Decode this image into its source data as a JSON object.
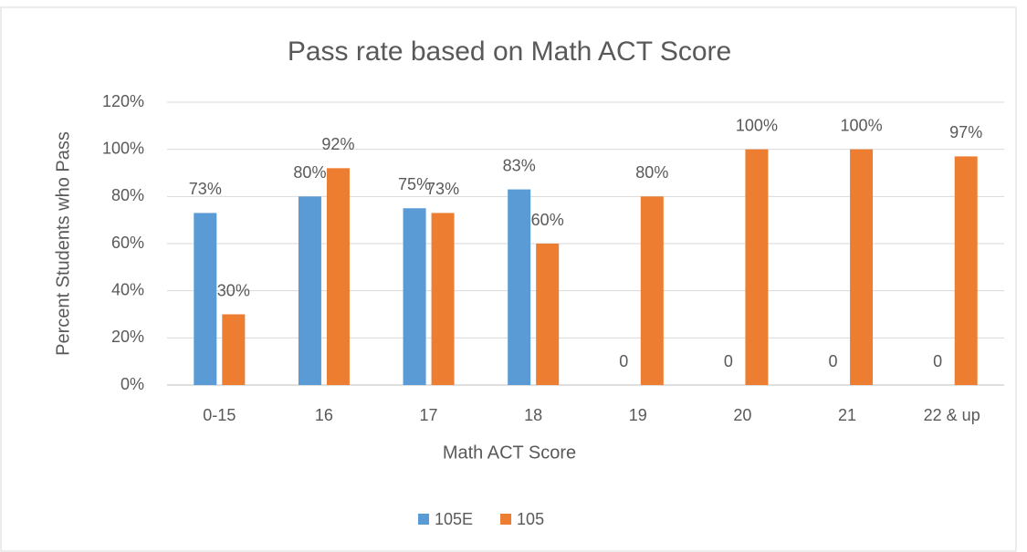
{
  "chart_data": {
    "type": "bar",
    "title": "Pass rate based on Math ACT Score",
    "x_label": "Math ACT Score",
    "y_label": "Percent Students who Pass",
    "categories": [
      "0-15",
      "16",
      "17",
      "18",
      "19",
      "20",
      "21",
      "22 & up"
    ],
    "series": [
      {
        "name": "105E",
        "color": "#5b9bd5",
        "values": [
          73,
          80,
          75,
          83,
          0,
          0,
          0,
          0
        ],
        "value_labels": [
          "73%",
          "80%",
          "75%",
          "83%",
          "0",
          "0",
          "0",
          "0"
        ]
      },
      {
        "name": "105",
        "color": "#ed7d31",
        "values": [
          30,
          92,
          73,
          60,
          80,
          100,
          100,
          97
        ],
        "value_labels": [
          "30%",
          "92%",
          "73%",
          "60%",
          "80%",
          "100%",
          "100%",
          "97%"
        ]
      }
    ],
    "ylim": [
      0,
      120
    ],
    "yticks": [
      {
        "value": 0,
        "label": "0%"
      },
      {
        "value": 20,
        "label": "20%"
      },
      {
        "value": 40,
        "label": "40%"
      },
      {
        "value": 60,
        "label": "60%"
      },
      {
        "value": 80,
        "label": "80%"
      },
      {
        "value": 100,
        "label": "100%"
      },
      {
        "value": 120,
        "label": "120%"
      }
    ],
    "grid": true,
    "legend": "bottom"
  }
}
